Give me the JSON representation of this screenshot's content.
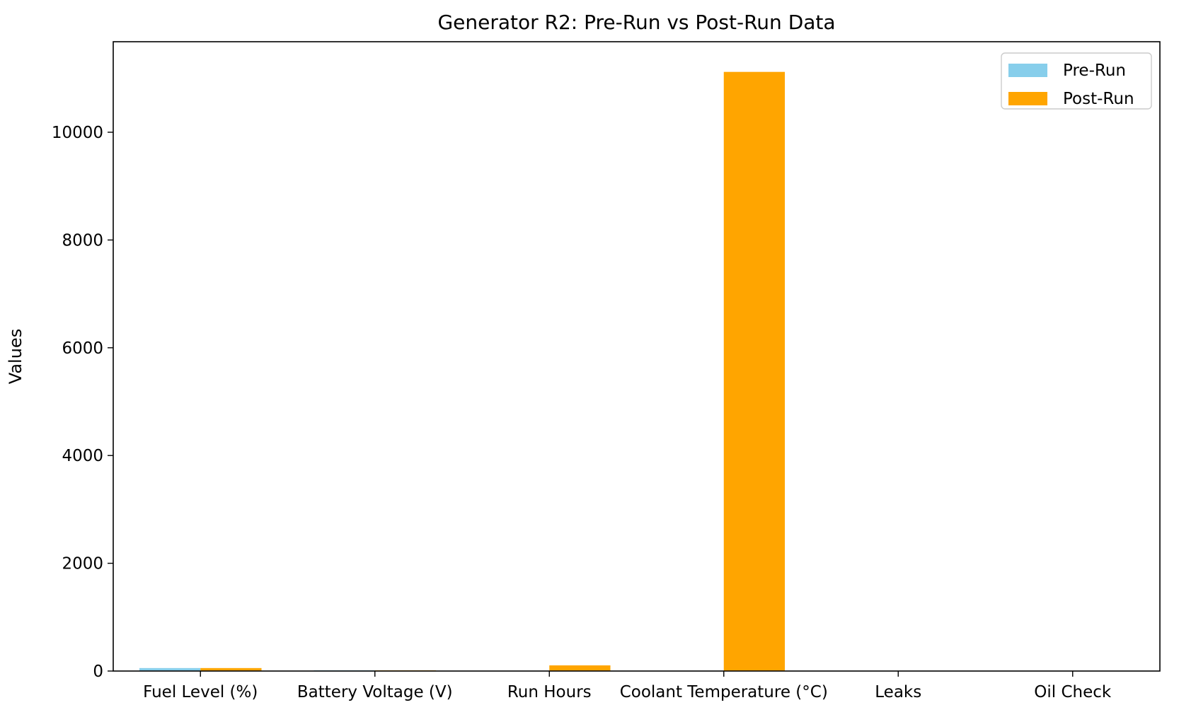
{
  "chart_data": {
    "type": "bar",
    "title": "Generator R2: Pre-Run vs Post-Run Data",
    "xlabel": "",
    "ylabel": "Values",
    "categories": [
      "Fuel Level (%)",
      "Battery Voltage (V)",
      "Run Hours",
      "Coolant Temperature (°C)",
      "Leaks",
      "Oil Check"
    ],
    "series": [
      {
        "name": "Pre-Run",
        "color": "#87ceeb",
        "values": [
          55,
          12.5,
          0,
          0,
          0,
          0
        ]
      },
      {
        "name": "Post-Run",
        "color": "#ffa500",
        "values": [
          55,
          12.5,
          105,
          11120,
          0,
          0
        ]
      }
    ],
    "ylim": [
      0,
      11680
    ],
    "yticks": [
      0,
      2000,
      4000,
      6000,
      8000,
      10000
    ],
    "ytick_labels": [
      "0",
      "2000",
      "4000",
      "6000",
      "8000",
      "10000"
    ],
    "grid": false,
    "legend": "top-right"
  }
}
